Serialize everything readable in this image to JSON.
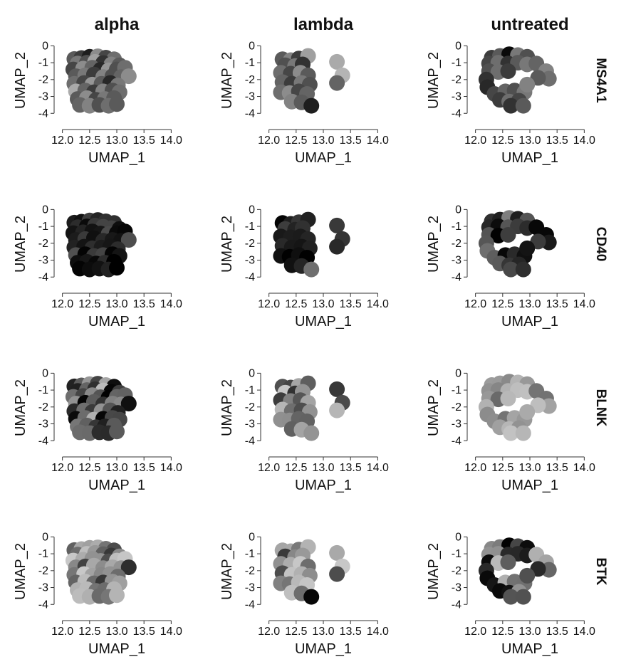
{
  "chart_data": {
    "type": "scatter",
    "description_free": true,
    "columns": [
      "alpha",
      "lambda",
      "untreated"
    ],
    "rows": [
      "MS4A1",
      "CD40",
      "BLNK",
      "BTK"
    ],
    "xlabel": "UMAP_1",
    "ylabel": "UMAP_2",
    "xlim": [
      11.9,
      14.1
    ],
    "ylim": [
      -4.2,
      0.1
    ],
    "xticks": [
      12.0,
      12.5,
      13.0,
      13.5,
      14.0
    ],
    "xtick_labels": [
      "12.0",
      "12.5",
      "13.0",
      "13.5",
      "14.0"
    ],
    "yticks": [
      0,
      -1,
      -2,
      -3,
      -4
    ],
    "ytick_labels": [
      "0",
      "-1",
      "-2",
      "-3",
      "-4"
    ],
    "grid": false,
    "legend": "none",
    "color_low": "#c8c8c8",
    "color_high": "#000000",
    "cells": {
      "alpha": [
        {
          "x": 12.22,
          "y": -0.78,
          "v": 0.55
        },
        {
          "x": 12.35,
          "y": -0.72,
          "v": 0.7
        },
        {
          "x": 12.5,
          "y": -0.65,
          "v": 0.85
        },
        {
          "x": 12.65,
          "y": -0.62,
          "v": 0.3
        },
        {
          "x": 12.8,
          "y": -0.7,
          "v": 0.65
        },
        {
          "x": 12.95,
          "y": -0.8,
          "v": 0.45
        },
        {
          "x": 12.28,
          "y": -1.05,
          "v": 0.4
        },
        {
          "x": 12.45,
          "y": -1.0,
          "v": 0.6
        },
        {
          "x": 12.6,
          "y": -0.95,
          "v": 0.2
        },
        {
          "x": 12.75,
          "y": -1.02,
          "v": 0.75
        },
        {
          "x": 12.9,
          "y": -1.1,
          "v": 0.35
        },
        {
          "x": 13.05,
          "y": -1.15,
          "v": 0.55
        },
        {
          "x": 12.2,
          "y": -1.4,
          "v": 0.65
        },
        {
          "x": 12.38,
          "y": -1.35,
          "v": 0.3
        },
        {
          "x": 12.55,
          "y": -1.3,
          "v": 0.5
        },
        {
          "x": 12.7,
          "y": -1.42,
          "v": 0.8
        },
        {
          "x": 12.85,
          "y": -1.45,
          "v": 0.25
        },
        {
          "x": 13.0,
          "y": -1.4,
          "v": 0.6
        },
        {
          "x": 13.15,
          "y": -1.3,
          "v": 0.45
        },
        {
          "x": 12.25,
          "y": -1.8,
          "v": 0.55
        },
        {
          "x": 12.42,
          "y": -1.75,
          "v": 0.4
        },
        {
          "x": 12.58,
          "y": -1.7,
          "v": 0.7
        },
        {
          "x": 12.75,
          "y": -1.85,
          "v": 0.35
        },
        {
          "x": 12.92,
          "y": -1.8,
          "v": 0.6
        },
        {
          "x": 13.08,
          "y": -1.85,
          "v": 0.5
        },
        {
          "x": 13.22,
          "y": -1.8,
          "v": 0.3
        },
        {
          "x": 12.22,
          "y": -2.25,
          "v": 0.45
        },
        {
          "x": 12.4,
          "y": -2.2,
          "v": 0.65
        },
        {
          "x": 12.55,
          "y": -2.3,
          "v": 0.25
        },
        {
          "x": 12.72,
          "y": -2.25,
          "v": 0.55
        },
        {
          "x": 12.88,
          "y": -2.2,
          "v": 0.8
        },
        {
          "x": 13.02,
          "y": -2.35,
          "v": 0.4
        },
        {
          "x": 12.25,
          "y": -2.7,
          "v": 0.15
        },
        {
          "x": 12.42,
          "y": -2.65,
          "v": 0.5
        },
        {
          "x": 12.58,
          "y": -2.75,
          "v": 0.7
        },
        {
          "x": 12.75,
          "y": -2.7,
          "v": 0.35
        },
        {
          "x": 12.92,
          "y": -2.65,
          "v": 0.6
        },
        {
          "x": 13.05,
          "y": -2.75,
          "v": 0.45
        },
        {
          "x": 12.28,
          "y": -3.15,
          "v": 0.55
        },
        {
          "x": 12.45,
          "y": -3.1,
          "v": 0.3
        },
        {
          "x": 12.62,
          "y": -3.2,
          "v": 0.65
        },
        {
          "x": 12.78,
          "y": -3.15,
          "v": 0.4
        },
        {
          "x": 12.95,
          "y": -3.1,
          "v": 0.55
        },
        {
          "x": 12.32,
          "y": -3.5,
          "v": 0.5
        },
        {
          "x": 12.5,
          "y": -3.55,
          "v": 0.35
        },
        {
          "x": 12.68,
          "y": -3.5,
          "v": 0.6
        },
        {
          "x": 12.85,
          "y": -3.55,
          "v": 0.45
        },
        {
          "x": 13.0,
          "y": -3.45,
          "v": 0.55
        }
      ],
      "lambda": [
        {
          "x": 12.25,
          "y": -0.8,
          "v": 0.55
        },
        {
          "x": 12.4,
          "y": -0.85,
          "v": 0.35
        },
        {
          "x": 12.55,
          "y": -0.75,
          "v": 0.7
        },
        {
          "x": 12.72,
          "y": -0.6,
          "v": 0.2
        },
        {
          "x": 12.3,
          "y": -1.15,
          "v": 0.6
        },
        {
          "x": 12.48,
          "y": -1.2,
          "v": 0.4
        },
        {
          "x": 12.62,
          "y": -1.1,
          "v": 0.75
        },
        {
          "x": 13.25,
          "y": -0.95,
          "v": 0.15
        },
        {
          "x": 13.35,
          "y": -1.75,
          "v": 0.1
        },
        {
          "x": 13.25,
          "y": -2.2,
          "v": 0.5
        },
        {
          "x": 12.22,
          "y": -1.6,
          "v": 0.45
        },
        {
          "x": 12.4,
          "y": -1.65,
          "v": 0.65
        },
        {
          "x": 12.58,
          "y": -1.6,
          "v": 0.3
        },
        {
          "x": 12.72,
          "y": -1.75,
          "v": 0.55
        },
        {
          "x": 12.25,
          "y": -2.15,
          "v": 0.5
        },
        {
          "x": 12.42,
          "y": -2.25,
          "v": 0.7
        },
        {
          "x": 12.6,
          "y": -2.2,
          "v": 0.4
        },
        {
          "x": 12.75,
          "y": -2.3,
          "v": 0.6
        },
        {
          "x": 12.22,
          "y": -2.75,
          "v": 0.45
        },
        {
          "x": 12.38,
          "y": -2.8,
          "v": 0.3
        },
        {
          "x": 12.55,
          "y": -2.7,
          "v": 0.65
        },
        {
          "x": 12.7,
          "y": -2.85,
          "v": 0.5
        },
        {
          "x": 12.42,
          "y": -3.3,
          "v": 0.35
        },
        {
          "x": 12.6,
          "y": -3.35,
          "v": 0.55
        },
        {
          "x": 12.78,
          "y": -3.55,
          "v": 0.85
        }
      ],
      "untreated": [
        {
          "x": 12.3,
          "y": -0.7,
          "v": 0.7
        },
        {
          "x": 12.45,
          "y": -0.6,
          "v": 0.55
        },
        {
          "x": 12.62,
          "y": -0.5,
          "v": 0.95
        },
        {
          "x": 12.78,
          "y": -0.55,
          "v": 0.4
        },
        {
          "x": 12.95,
          "y": -0.65,
          "v": 0.6
        },
        {
          "x": 12.25,
          "y": -1.05,
          "v": 0.65
        },
        {
          "x": 12.42,
          "y": -1.0,
          "v": 0.45
        },
        {
          "x": 12.6,
          "y": -1.05,
          "v": 0.75
        },
        {
          "x": 12.78,
          "y": -1.0,
          "v": 0.55
        },
        {
          "x": 12.95,
          "y": -1.1,
          "v": 0.4
        },
        {
          "x": 13.12,
          "y": -1.05,
          "v": 0.5
        },
        {
          "x": 13.3,
          "y": -1.5,
          "v": 0.35
        },
        {
          "x": 13.35,
          "y": -1.95,
          "v": 0.45
        },
        {
          "x": 13.15,
          "y": -1.9,
          "v": 0.55
        },
        {
          "x": 12.25,
          "y": -1.5,
          "v": 0.6
        },
        {
          "x": 12.42,
          "y": -1.55,
          "v": 0.45
        },
        {
          "x": 12.6,
          "y": -1.5,
          "v": 0.7
        },
        {
          "x": 12.2,
          "y": -2.0,
          "v": 0.75
        },
        {
          "x": 12.22,
          "y": -2.45,
          "v": 0.8
        },
        {
          "x": 12.35,
          "y": -2.85,
          "v": 0.65
        },
        {
          "x": 12.55,
          "y": -2.7,
          "v": 0.5
        },
        {
          "x": 12.72,
          "y": -2.65,
          "v": 0.6
        },
        {
          "x": 12.9,
          "y": -2.75,
          "v": 0.4
        },
        {
          "x": 12.45,
          "y": -3.2,
          "v": 0.7
        },
        {
          "x": 12.62,
          "y": -3.3,
          "v": 0.45
        },
        {
          "x": 12.8,
          "y": -3.25,
          "v": 0.65
        },
        {
          "x": 12.65,
          "y": -3.55,
          "v": 0.75
        },
        {
          "x": 12.88,
          "y": -3.55,
          "v": 0.55
        },
        {
          "x": 12.95,
          "y": -2.3,
          "v": 0.35
        }
      ]
    },
    "rowShift": [
      0.0,
      0.31,
      0.62,
      0.93
    ]
  }
}
